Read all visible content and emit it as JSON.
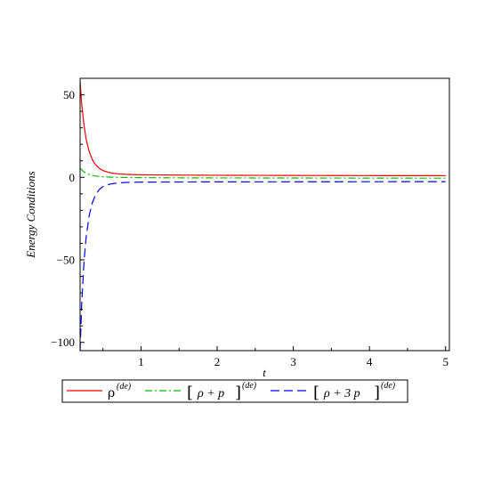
{
  "chart_data": {
    "type": "line",
    "title": "",
    "xlabel": "t",
    "ylabel": "Energy Conditions",
    "xlim": [
      0.2,
      5.05
    ],
    "ylim": [
      -105,
      60
    ],
    "x_ticks": [
      1,
      2,
      3,
      4,
      5
    ],
    "x_tick_labels": [
      "1",
      "2",
      "3",
      "4",
      "5"
    ],
    "y_ticks": [
      -100,
      -50,
      0,
      50
    ],
    "y_tick_labels": [
      "−100",
      "−50",
      "0",
      "50"
    ],
    "grid": false,
    "legend_position": "bottom",
    "series": [
      {
        "name": "ρ^(de)",
        "color": "#ff0000",
        "style": "solid",
        "x": [
          0.2,
          0.22,
          0.25,
          0.28,
          0.32,
          0.36,
          0.4,
          0.45,
          0.5,
          0.6,
          0.7,
          0.8,
          1.0,
          1.5,
          2.0,
          3.0,
          4.0,
          5.0
        ],
        "y": [
          58,
          45,
          32,
          23,
          15.5,
          10.8,
          7.8,
          5.5,
          4.1,
          2.7,
          2.1,
          1.8,
          1.55,
          1.35,
          1.25,
          1.15,
          1.05,
          1.0
        ]
      },
      {
        "name": "[ρ + p]^(de)",
        "color": "#00c000",
        "style": "dashdot",
        "x": [
          0.2,
          0.25,
          0.3,
          0.35,
          0.4,
          0.5,
          0.6,
          0.8,
          1.0,
          1.5,
          2.0,
          3.0,
          4.0,
          5.0
        ],
        "y": [
          5.5,
          3.3,
          2.1,
          1.3,
          0.8,
          0.3,
          0.1,
          -0.1,
          -0.2,
          -0.3,
          -0.35,
          -0.4,
          -0.45,
          -0.5
        ]
      },
      {
        "name": "[ρ + 3 p]^(de)",
        "color": "#0000ff",
        "style": "dash",
        "x": [
          0.2,
          0.22,
          0.25,
          0.28,
          0.32,
          0.36,
          0.4,
          0.45,
          0.5,
          0.6,
          0.7,
          0.8,
          1.0,
          1.5,
          2.0,
          3.0,
          4.0,
          5.0
        ],
        "y": [
          -105,
          -78,
          -52,
          -36,
          -23,
          -15.5,
          -11,
          -7.5,
          -5.6,
          -4.0,
          -3.4,
          -3.1,
          -2.9,
          -2.8,
          -2.75,
          -2.7,
          -2.65,
          -2.6
        ]
      }
    ]
  },
  "legend": {
    "items": [
      {
        "base": "ρ",
        "sup": "(de)",
        "color": "#ff0000",
        "dash": ""
      },
      {
        "base": "ρ + p",
        "sup": "(de)",
        "color": "#00c000",
        "dash": "8 3 2 3"
      },
      {
        "base": "ρ + 3 p",
        "sup": "(de)",
        "color": "#0000ff",
        "dash": "10 5"
      }
    ]
  }
}
